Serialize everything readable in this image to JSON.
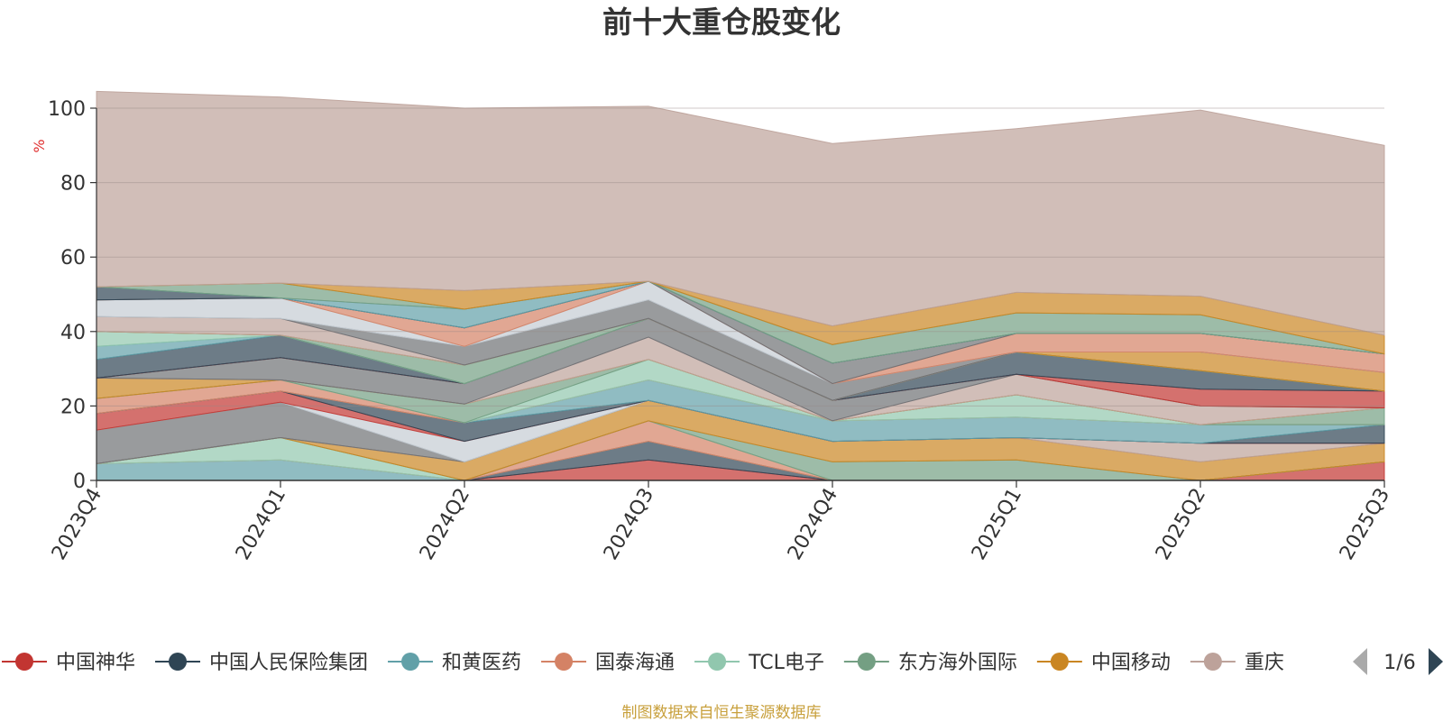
{
  "chart_data": {
    "type": "area",
    "stacked": true,
    "title": "前十大重仓股变化",
    "ylabel": "%",
    "ylim": [
      0,
      100
    ],
    "yticks": [
      0,
      20,
      40,
      60,
      80,
      100
    ],
    "grid": true,
    "categories": [
      "2023Q4",
      "2024Q1",
      "2024Q2",
      "2024Q3",
      "2024Q4",
      "2025Q1",
      "2025Q2",
      "2025Q3"
    ],
    "series": [
      {
        "name": "中国神华",
        "color": "#c23531",
        "values": [
          0,
          0,
          0,
          5.5,
          0,
          0,
          0,
          5
        ]
      },
      {
        "name": "中国人民保险集团",
        "color": "#2f4554",
        "values": [
          0,
          0,
          0,
          5,
          0,
          0,
          0,
          0
        ]
      },
      {
        "name": "和黄医药",
        "color": "#61a0a8",
        "values": [
          4.5,
          5.5,
          0,
          0,
          0,
          0,
          0,
          0
        ]
      },
      {
        "name": "国泰海通",
        "color": "#d48265",
        "values": [
          0,
          0,
          0,
          5.5,
          0,
          0,
          0,
          0
        ]
      },
      {
        "name": "TCL电子",
        "color": "#91c7ae",
        "values": [
          0,
          6,
          0,
          0,
          0,
          0,
          0,
          0
        ]
      },
      {
        "name": "东方海外国际",
        "color": "#749f83",
        "values": [
          0,
          0,
          0,
          0,
          5,
          5.5,
          0,
          0
        ]
      },
      {
        "name": "中国移动",
        "color": "#ca8622",
        "values": [
          0,
          0,
          5,
          5.5,
          5.5,
          6,
          5,
          5
        ]
      },
      {
        "name": "重庆",
        "color": "#bda29a",
        "values": [
          0,
          0,
          0,
          0,
          0,
          0,
          5,
          0
        ]
      },
      {
        "name": "",
        "color": "#6e7074",
        "values": [
          9,
          9.5,
          0,
          0,
          0,
          0,
          0,
          0
        ]
      },
      {
        "name": "",
        "color": "#c4ccd3",
        "values": [
          0,
          0,
          5.5,
          0,
          0,
          0,
          0,
          0
        ]
      },
      {
        "name": "",
        "color": "#c23531",
        "values": [
          4.5,
          3,
          0,
          0,
          0,
          0,
          0,
          0
        ]
      },
      {
        "name": "",
        "color": "#2f4554",
        "values": [
          0,
          0,
          5,
          0,
          0,
          0,
          0,
          5
        ]
      },
      {
        "name": "",
        "color": "#61a0a8",
        "values": [
          0,
          0,
          0,
          5.5,
          5.5,
          5.5,
          5,
          0
        ]
      },
      {
        "name": "",
        "color": "#d48265",
        "values": [
          4,
          3,
          0,
          0,
          0,
          0,
          0,
          0
        ]
      },
      {
        "name": "",
        "color": "#91c7ae",
        "values": [
          0,
          0,
          0,
          5.5,
          0,
          6,
          0,
          0
        ]
      },
      {
        "name": "",
        "color": "#749f83",
        "values": [
          0,
          0,
          5,
          0,
          0,
          0,
          0,
          4.5
        ]
      },
      {
        "name": "",
        "color": "#ca8622",
        "values": [
          5.5,
          0,
          0,
          0,
          0,
          0,
          0,
          0
        ]
      },
      {
        "name": "",
        "color": "#bda29a",
        "values": [
          0,
          0,
          0,
          6,
          0,
          5.5,
          5,
          0
        ]
      },
      {
        "name": "",
        "color": "#6e7074",
        "values": [
          0,
          6,
          5.5,
          5,
          5.5,
          0,
          0,
          0
        ]
      },
      {
        "name": "",
        "color": "#c23531",
        "values": [
          0,
          0,
          0,
          0,
          0,
          0,
          4.5,
          4.5
        ]
      },
      {
        "name": "",
        "color": "#2f4554",
        "values": [
          5,
          6,
          0,
          0,
          0,
          6,
          5,
          0
        ]
      },
      {
        "name": "",
        "color": "#61a0a8",
        "values": [
          3.5,
          0,
          0,
          0,
          0,
          0,
          0,
          0
        ]
      },
      {
        "name": "",
        "color": "#91c7ae",
        "values": [
          4,
          0,
          0,
          0,
          0,
          0,
          0,
          0
        ]
      },
      {
        "name": "",
        "color": "#749f83",
        "values": [
          0,
          0,
          5,
          0,
          0,
          0,
          0,
          0
        ]
      },
      {
        "name": "",
        "color": "#ca8622",
        "values": [
          0,
          0,
          0,
          0,
          0,
          0,
          5,
          5
        ]
      },
      {
        "name": "",
        "color": "#bda29a",
        "values": [
          4,
          4.5,
          0,
          0,
          0,
          0,
          0,
          0
        ]
      },
      {
        "name": "",
        "color": "#6e7074",
        "values": [
          0,
          0,
          5,
          5,
          4.5,
          0,
          0,
          0
        ]
      },
      {
        "name": "",
        "color": "#c4ccd3",
        "values": [
          4.5,
          5.5,
          0,
          5,
          0,
          0,
          0,
          0
        ]
      },
      {
        "name": "",
        "color": "#d48265",
        "values": [
          0,
          0,
          5,
          0,
          0,
          5,
          5,
          5
        ]
      },
      {
        "name": "",
        "color": "#6e7074",
        "values": [
          0,
          0,
          0,
          0,
          5.5,
          0,
          0,
          0
        ]
      },
      {
        "name": "",
        "color": "#2f4554",
        "values": [
          3.5,
          0,
          0,
          0,
          0,
          0,
          0,
          0
        ]
      },
      {
        "name": "",
        "color": "#61a0a8",
        "values": [
          0,
          0,
          5,
          0,
          0,
          0,
          0,
          0
        ]
      },
      {
        "name": "",
        "color": "#749f83",
        "values": [
          0,
          4,
          0,
          0,
          5,
          5.5,
          5,
          0
        ]
      },
      {
        "name": "",
        "color": "#ca8622",
        "values": [
          0,
          0,
          5,
          0,
          5,
          5.5,
          5,
          5
        ]
      },
      {
        "name": "",
        "color": "#bda29a",
        "values": [
          52.5,
          50,
          49,
          47,
          49,
          44,
          50,
          51
        ]
      }
    ],
    "legend": {
      "placement": "bottom",
      "page": "1/6"
    }
  },
  "footer": {
    "source": "制图数据来自恒生聚源数据库"
  }
}
